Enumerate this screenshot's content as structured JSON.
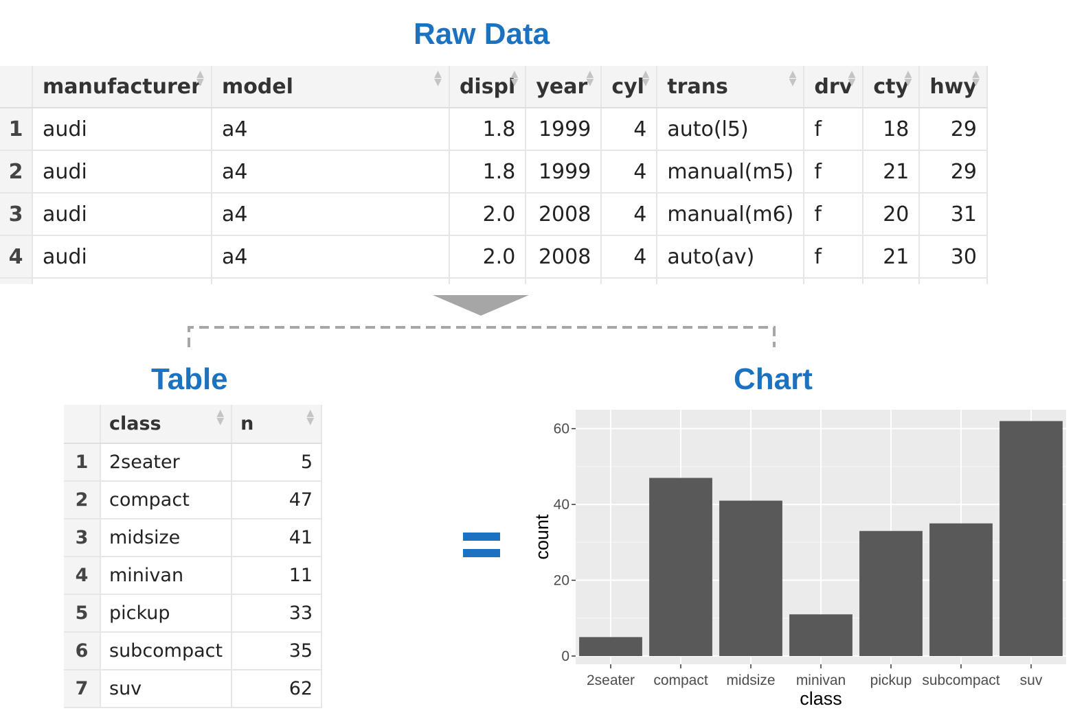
{
  "titles": {
    "raw": "Raw Data",
    "table": "Table",
    "chart": "Chart"
  },
  "colors": {
    "title": "#1a72c0",
    "bar": "#595959",
    "panel": "#ebebeb"
  },
  "raw_data": {
    "columns": [
      "manufacturer",
      "model",
      "displ",
      "year",
      "cyl",
      "trans",
      "drv",
      "cty",
      "hwy"
    ],
    "rows": [
      {
        "n": "1",
        "cells": [
          "audi",
          "a4",
          "1.8",
          "1999",
          "4",
          "auto(l5)",
          "f",
          "18",
          "29"
        ]
      },
      {
        "n": "2",
        "cells": [
          "audi",
          "a4",
          "1.8",
          "1999",
          "4",
          "manual(m5)",
          "f",
          "21",
          "29"
        ]
      },
      {
        "n": "3",
        "cells": [
          "audi",
          "a4",
          "2.0",
          "2008",
          "4",
          "manual(m6)",
          "f",
          "20",
          "31"
        ]
      },
      {
        "n": "4",
        "cells": [
          "audi",
          "a4",
          "2.0",
          "2008",
          "4",
          "auto(av)",
          "f",
          "21",
          "30"
        ]
      }
    ]
  },
  "summary_table": {
    "columns": [
      "class",
      "n"
    ],
    "rows": [
      {
        "n": "1",
        "class": "2seater",
        "count": "5"
      },
      {
        "n": "2",
        "class": "compact",
        "count": "47"
      },
      {
        "n": "3",
        "class": "midsize",
        "count": "41"
      },
      {
        "n": "4",
        "class": "minivan",
        "count": "11"
      },
      {
        "n": "5",
        "class": "pickup",
        "count": "33"
      },
      {
        "n": "6",
        "class": "subcompact",
        "count": "35"
      },
      {
        "n": "7",
        "class": "suv",
        "count": "62"
      }
    ]
  },
  "chart_data": {
    "type": "bar",
    "categories": [
      "2seater",
      "compact",
      "midsize",
      "minivan",
      "pickup",
      "subcompact",
      "suv"
    ],
    "values": [
      5,
      47,
      41,
      11,
      33,
      35,
      62
    ],
    "xlabel": "class",
    "ylabel": "count",
    "yticks": [
      0,
      20,
      40,
      60
    ],
    "ylim": [
      0,
      65
    ],
    "grid": true
  }
}
